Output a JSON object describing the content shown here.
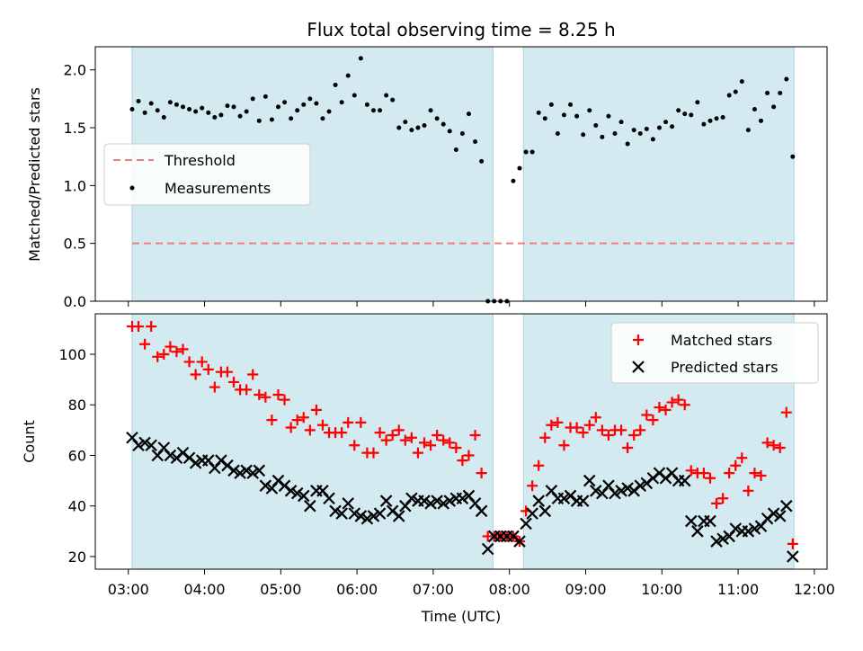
{
  "chart_data": [
    {
      "type": "scatter",
      "title": "Flux total observing time = 8.25 h",
      "xlabel": "",
      "ylabel": "Matched/Predicted stars",
      "xlim": [
        "02:34",
        "12:10"
      ],
      "ylim": [
        0,
        2.2
      ],
      "yticks": [
        "0.0",
        "0.5",
        "1.0",
        "1.5",
        "2.0"
      ],
      "grid": false,
      "legend": {
        "placement": "center-left",
        "entries": [
          "Threshold",
          "Measurements"
        ]
      },
      "threshold": {
        "name": "Threshold",
        "y": 0.5,
        "x_start": "03:03",
        "x_end": "11:44",
        "color": "#f07d7d"
      },
      "observing_windows": [
        {
          "start": "03:03",
          "end": "07:47"
        },
        {
          "start": "08:11",
          "end": "11:44"
        }
      ],
      "colors": {
        "window": "#d3eaf0",
        "window_edge": "#a9d3e0",
        "measurements": "#000000"
      },
      "series": [
        {
          "name": "Measurements",
          "x": [
            "03:03",
            "03:08",
            "03:13",
            "03:18",
            "03:23",
            "03:28",
            "03:33",
            "03:38",
            "03:43",
            "03:48",
            "03:53",
            "03:58",
            "04:03",
            "04:08",
            "04:13",
            "04:18",
            "04:23",
            "04:28",
            "04:33",
            "04:38",
            "04:43",
            "04:48",
            "04:53",
            "04:58",
            "05:03",
            "05:08",
            "05:13",
            "05:18",
            "05:23",
            "05:28",
            "05:33",
            "05:38",
            "05:43",
            "05:48",
            "05:53",
            "05:58",
            "06:03",
            "06:08",
            "06:13",
            "06:18",
            "06:23",
            "06:28",
            "06:33",
            "06:38",
            "06:43",
            "06:48",
            "06:53",
            "06:58",
            "07:03",
            "07:08",
            "07:13",
            "07:18",
            "07:23",
            "07:28",
            "07:33",
            "07:38",
            "07:43",
            "07:48",
            "07:53",
            "07:58",
            "08:03",
            "08:08",
            "08:13",
            "08:18",
            "08:23",
            "08:28",
            "08:33",
            "08:38",
            "08:43",
            "08:48",
            "08:53",
            "08:58",
            "09:03",
            "09:08",
            "09:13",
            "09:18",
            "09:23",
            "09:28",
            "09:33",
            "09:38",
            "09:43",
            "09:48",
            "09:53",
            "09:58",
            "10:03",
            "10:08",
            "10:13",
            "10:18",
            "10:23",
            "10:28",
            "10:33",
            "10:38",
            "10:43",
            "10:48",
            "10:53",
            "10:58",
            "11:03",
            "11:08",
            "11:13",
            "11:18",
            "11:23",
            "11:28",
            "11:33",
            "11:38",
            "11:43"
          ],
          "y": [
            1.66,
            1.73,
            1.63,
            1.71,
            1.65,
            1.59,
            1.72,
            1.7,
            1.68,
            1.66,
            1.64,
            1.67,
            1.63,
            1.59,
            1.61,
            1.69,
            1.68,
            1.6,
            1.64,
            1.75,
            1.56,
            1.77,
            1.57,
            1.68,
            1.72,
            1.58,
            1.65,
            1.7,
            1.75,
            1.71,
            1.58,
            1.64,
            1.87,
            1.72,
            1.95,
            1.78,
            2.1,
            1.7,
            1.65,
            1.65,
            1.78,
            1.74,
            1.5,
            1.55,
            1.48,
            1.5,
            1.52,
            1.65,
            1.58,
            1.53,
            1.47,
            1.31,
            1.45,
            1.62,
            1.38,
            1.21,
            0.0,
            0.0,
            0.0,
            0.0,
            1.04,
            1.15,
            1.29,
            1.29,
            1.63,
            1.58,
            1.7,
            1.45,
            1.61,
            1.7,
            1.6,
            1.44,
            1.65,
            1.52,
            1.42,
            1.6,
            1.45,
            1.55,
            1.36,
            1.48,
            1.45,
            1.49,
            1.4,
            1.5,
            1.55,
            1.51,
            1.65,
            1.62,
            1.61,
            1.72,
            1.53,
            1.56,
            1.58,
            1.59,
            1.78,
            1.81,
            1.9,
            1.48,
            1.66,
            1.56,
            1.8,
            1.68,
            1.8,
            1.92,
            1.25
          ]
        }
      ]
    },
    {
      "type": "scatter",
      "title": "",
      "xlabel": "Time (UTC)",
      "ylabel": "Count",
      "xlim": [
        "02:34",
        "12:10"
      ],
      "ylim": [
        15,
        116
      ],
      "xticks": [
        "03:00",
        "04:00",
        "05:00",
        "06:00",
        "07:00",
        "08:00",
        "09:00",
        "10:00",
        "11:00",
        "12:00"
      ],
      "yticks": [
        "20",
        "40",
        "60",
        "80",
        "100"
      ],
      "grid": false,
      "legend": {
        "placement": "top-right",
        "entries": [
          "Matched stars",
          "Predicted stars"
        ]
      },
      "observing_windows": [
        {
          "start": "03:03",
          "end": "07:47"
        },
        {
          "start": "08:11",
          "end": "11:44"
        }
      ],
      "colors": {
        "window": "#d3eaf0",
        "window_edge": "#a9d3e0",
        "matched": "#ff0000",
        "predicted": "#000000"
      },
      "series": [
        {
          "name": "Matched stars",
          "marker": "plus",
          "x": [
            "03:03",
            "03:08",
            "03:13",
            "03:18",
            "03:23",
            "03:28",
            "03:33",
            "03:38",
            "03:43",
            "03:48",
            "03:53",
            "03:58",
            "04:03",
            "04:08",
            "04:13",
            "04:18",
            "04:23",
            "04:28",
            "04:33",
            "04:38",
            "04:43",
            "04:48",
            "04:53",
            "04:58",
            "05:03",
            "05:08",
            "05:13",
            "05:18",
            "05:23",
            "05:28",
            "05:33",
            "05:38",
            "05:43",
            "05:48",
            "05:53",
            "05:58",
            "06:03",
            "06:08",
            "06:13",
            "06:18",
            "06:23",
            "06:28",
            "06:33",
            "06:38",
            "06:43",
            "06:48",
            "06:53",
            "06:58",
            "07:03",
            "07:08",
            "07:13",
            "07:18",
            "07:23",
            "07:28",
            "07:33",
            "07:38",
            "07:43",
            "07:48",
            "07:53",
            "07:58",
            "08:03",
            "08:08",
            "08:13",
            "08:18",
            "08:23",
            "08:28",
            "08:33",
            "08:38",
            "08:43",
            "08:48",
            "08:53",
            "08:58",
            "09:03",
            "09:08",
            "09:13",
            "09:18",
            "09:23",
            "09:28",
            "09:33",
            "09:38",
            "09:43",
            "09:48",
            "09:53",
            "09:58",
            "10:03",
            "10:08",
            "10:13",
            "10:18",
            "10:23",
            "10:28",
            "10:33",
            "10:38",
            "10:43",
            "10:48",
            "10:53",
            "10:58",
            "11:03",
            "11:08",
            "11:13",
            "11:18",
            "11:23",
            "11:28",
            "11:33",
            "11:38",
            "11:43"
          ],
          "y": [
            111,
            111,
            104,
            111,
            99,
            100,
            103,
            101,
            102,
            97,
            92,
            97,
            94,
            87,
            93,
            93,
            89,
            86,
            86,
            92,
            84,
            83,
            74,
            84,
            82,
            71,
            74,
            75,
            70,
            78,
            72,
            69,
            69,
            69,
            73,
            64,
            73,
            61,
            61,
            69,
            66,
            68,
            70,
            66,
            67,
            61,
            65,
            64,
            68,
            66,
            65,
            63,
            58,
            60,
            68,
            53,
            28,
            28,
            28,
            28,
            28,
            26,
            38,
            48,
            56,
            67,
            72,
            73,
            64,
            71,
            71,
            69,
            72,
            75,
            70,
            68,
            70,
            70,
            63,
            68,
            70,
            76,
            74,
            79,
            78,
            81,
            82,
            80,
            54,
            53,
            53,
            51,
            41,
            43,
            53,
            56,
            59,
            46,
            53,
            52,
            65,
            64,
            63,
            77,
            25
          ]
        },
        {
          "name": "Predicted stars",
          "marker": "x",
          "x": [
            "03:03",
            "03:08",
            "03:13",
            "03:18",
            "03:23",
            "03:28",
            "03:33",
            "03:38",
            "03:43",
            "03:48",
            "03:53",
            "03:58",
            "04:03",
            "04:08",
            "04:13",
            "04:18",
            "04:23",
            "04:28",
            "04:33",
            "04:38",
            "04:43",
            "04:48",
            "04:53",
            "04:58",
            "05:03",
            "05:08",
            "05:13",
            "05:18",
            "05:23",
            "05:28",
            "05:33",
            "05:38",
            "05:43",
            "05:48",
            "05:53",
            "05:58",
            "06:03",
            "06:08",
            "06:13",
            "06:18",
            "06:23",
            "06:28",
            "06:33",
            "06:38",
            "06:43",
            "06:48",
            "06:53",
            "06:58",
            "07:03",
            "07:08",
            "07:13",
            "07:18",
            "07:23",
            "07:28",
            "07:33",
            "07:38",
            "07:43",
            "07:48",
            "07:53",
            "07:58",
            "08:03",
            "08:08",
            "08:13",
            "08:18",
            "08:23",
            "08:28",
            "08:33",
            "08:38",
            "08:43",
            "08:48",
            "08:53",
            "08:58",
            "09:03",
            "09:08",
            "09:13",
            "09:18",
            "09:23",
            "09:28",
            "09:33",
            "09:38",
            "09:43",
            "09:48",
            "09:53",
            "09:58",
            "10:03",
            "10:08",
            "10:13",
            "10:18",
            "10:23",
            "10:28",
            "10:33",
            "10:38",
            "10:43",
            "10:48",
            "10:53",
            "10:58",
            "11:03",
            "11:08",
            "11:13",
            "11:18",
            "11:23",
            "11:28",
            "11:33",
            "11:38",
            "11:43"
          ],
          "y": [
            67,
            64,
            65,
            64,
            60,
            63,
            60,
            59,
            61,
            59,
            57,
            58,
            58,
            55,
            58,
            56,
            54,
            53,
            54,
            53,
            54,
            48,
            47,
            50,
            48,
            46,
            45,
            44,
            40,
            46,
            46,
            43,
            38,
            37,
            41,
            37,
            36,
            35,
            36,
            37,
            42,
            38,
            36,
            40,
            43,
            42,
            42,
            41,
            42,
            41,
            42,
            43,
            43,
            44,
            41,
            38,
            23,
            28,
            28,
            28,
            28,
            26,
            33,
            37,
            42,
            38,
            46,
            43,
            43,
            44,
            42,
            42,
            50,
            46,
            45,
            48,
            45,
            46,
            47,
            46,
            48,
            49,
            51,
            53,
            51,
            53,
            50,
            50,
            34,
            30,
            34,
            34,
            26,
            27,
            28,
            31,
            30,
            30,
            31,
            32,
            35,
            37,
            36,
            40,
            20
          ]
        }
      ]
    }
  ]
}
